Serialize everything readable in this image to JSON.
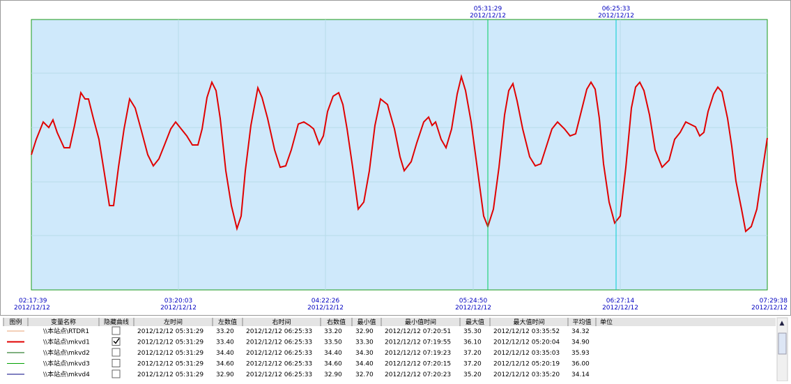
{
  "cursors": [
    {
      "time": "05:31:29",
      "date": "2012/12/12"
    },
    {
      "time": "06:25:33",
      "date": "2012/12/12"
    }
  ],
  "x_labels": [
    {
      "time": "02:17:39",
      "date": "2012/12/12"
    },
    {
      "time": "03:20:03",
      "date": "2012/12/12"
    },
    {
      "time": "04:22:26",
      "date": "2012/12/12"
    },
    {
      "time": "05:24:50",
      "date": "2012/12/12"
    },
    {
      "time": "06:27:14",
      "date": "2012/12/12"
    },
    {
      "time": "07:29:38",
      "date": "2012/12/12"
    }
  ],
  "table": {
    "header": [
      "图例",
      "变量名称",
      "隐藏曲线",
      "左时间",
      "左数值",
      "右时间",
      "右数值",
      "最小值",
      "最小值时间",
      "最大值",
      "最大值时间",
      "平均值",
      "单位"
    ],
    "rows": [
      {
        "color": "#e8a070",
        "name": "\\\\本站点\\RTDR1",
        "hidden": false,
        "cells": [
          "2012/12/12 05:31:29",
          "33.20",
          "2012/12/12 06:25:33",
          "33.20",
          "32.90",
          "2012/12/12 07:20:51",
          "35.30",
          "2012/12/12 03:35:52",
          "34.32"
        ]
      },
      {
        "color": "#e00000",
        "name": "\\\\本站点\\mkvd1",
        "hidden": true,
        "cells": [
          "2012/12/12 05:31:29",
          "33.40",
          "2012/12/12 06:25:33",
          "33.50",
          "33.30",
          "2012/12/12 07:19:55",
          "36.10",
          "2012/12/12 05:20:04",
          "34.90"
        ]
      },
      {
        "color": "#006000",
        "name": "\\\\本站点\\mkvd2",
        "hidden": false,
        "cells": [
          "2012/12/12 05:31:29",
          "34.40",
          "2012/12/12 06:25:33",
          "34.40",
          "34.30",
          "2012/12/12 07:19:23",
          "37.20",
          "2012/12/12 03:35:03",
          "35.93"
        ]
      },
      {
        "color": "#00a000",
        "name": "\\\\本站点\\mkvd3",
        "hidden": false,
        "cells": [
          "2012/12/12 05:31:29",
          "34.60",
          "2012/12/12 06:25:33",
          "34.60",
          "34.40",
          "2012/12/12 07:20:15",
          "37.20",
          "2012/12/12 05:20:19",
          "36.00"
        ]
      },
      {
        "color": "#000080",
        "name": "\\\\本站点\\mkvd4",
        "hidden": false,
        "cells": [
          "2012/12/12 05:31:29",
          "32.90",
          "2012/12/12 06:25:33",
          "32.90",
          "32.70",
          "2012/12/12 07:20:23",
          "35.20",
          "2012/12/12 03:35:20",
          "34.14"
        ]
      }
    ]
  }
}
